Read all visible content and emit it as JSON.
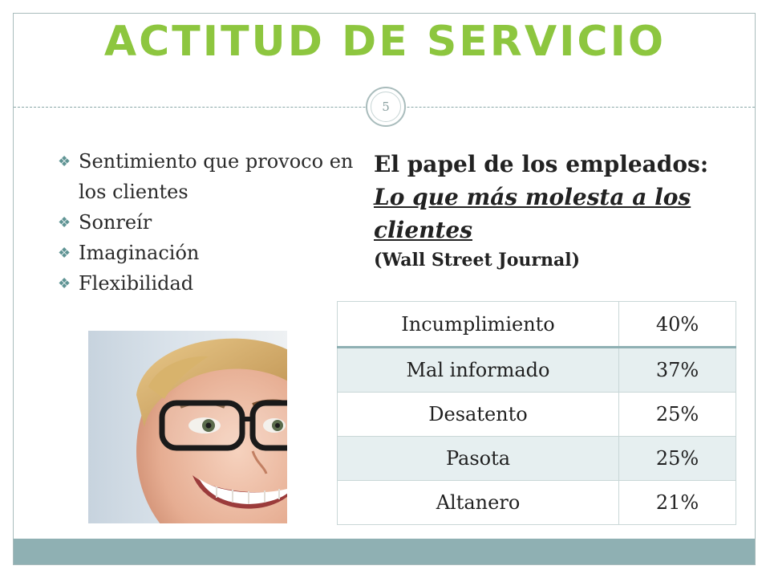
{
  "title": "Actitud de servicio",
  "slide_number": "5",
  "bullets": [
    "Sentimiento que provoco en los clientes",
    "Sonreír",
    "Imaginación",
    "Flexibilidad"
  ],
  "headline": {
    "lead": "El papel de los empleados:",
    "emphasis": "Lo que más molesta a los clientes",
    "source": "(Wall Street Journal)"
  },
  "table": {
    "rows": [
      {
        "label": "Incumplimiento",
        "value": "40%"
      },
      {
        "label": "Mal informado",
        "value": "37%"
      },
      {
        "label": "Desatento",
        "value": "25%"
      },
      {
        "label": "Pasota",
        "value": "25%"
      },
      {
        "label": "Altanero",
        "value": "21%"
      }
    ]
  },
  "colors": {
    "title": "#8dc63f",
    "accent": "#8fb0b3",
    "row_alt": "#e6eff0"
  }
}
